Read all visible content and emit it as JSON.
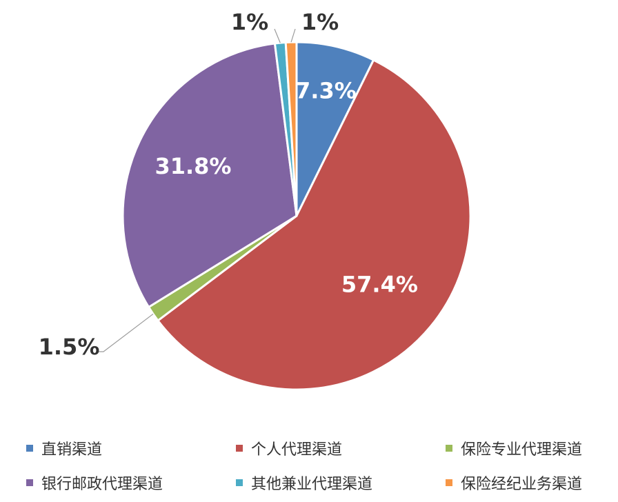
{
  "chart_data": {
    "type": "pie",
    "title": "",
    "start_angle_deg": 0,
    "categories": [
      "直销渠道",
      "个人代理渠道",
      "保险专业代理渠道",
      "银行邮政代理渠道",
      "其他兼业代理渠道",
      "保险经纪业务渠道"
    ],
    "values": [
      7.3,
      57.4,
      1.5,
      31.8,
      1.0,
      1.0
    ],
    "data_labels": [
      "7.3%",
      "57.4%",
      "1.5%",
      "31.8%",
      "1%",
      "1%"
    ],
    "colors": [
      "#4F81BD",
      "#C0504D",
      "#9BBB59",
      "#8064A2",
      "#4BACC6",
      "#F79646"
    ],
    "legend_position": "bottom",
    "legend": {
      "items": [
        {
          "label": "直销渠道",
          "color": "#4F81BD"
        },
        {
          "label": "个人代理渠道",
          "color": "#C0504D"
        },
        {
          "label": "保险专业代理渠道",
          "color": "#9BBB59"
        },
        {
          "label": "银行邮政代理渠道",
          "color": "#8064A2"
        },
        {
          "label": "其他兼业代理渠道",
          "color": "#4BACC6"
        },
        {
          "label": "保险经纪业务渠道",
          "color": "#F79646"
        }
      ]
    }
  }
}
